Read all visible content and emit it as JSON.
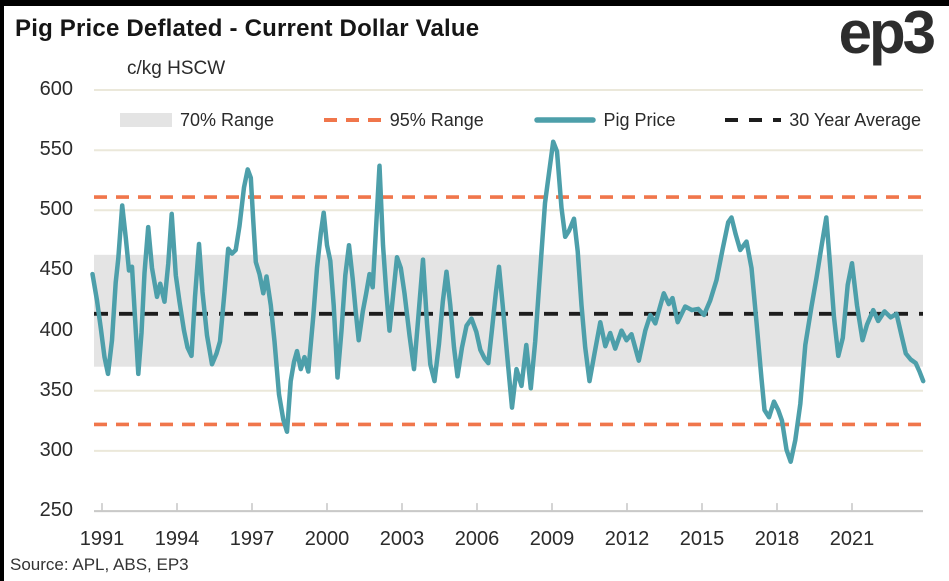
{
  "header": {
    "title": "Pig Price Deflated - Current Dollar Value",
    "logo_text": "ep3"
  },
  "footer": {
    "source": "Source: APL, ABS, EP3"
  },
  "chart_data": {
    "type": "line",
    "title": "Pig Price Deflated - Current Dollar Value",
    "y_unit_label": "c/kg HSCW",
    "ylim": [
      250,
      600
    ],
    "xlim": [
      1990.6,
      2023.9
    ],
    "grid": "horizontal-only",
    "y_ticks": [
      600,
      550,
      500,
      450,
      400,
      350,
      300,
      250
    ],
    "x_ticks": [
      1991,
      1994,
      1997,
      2000,
      2003,
      2006,
      2009,
      2012,
      2015,
      2018,
      2021
    ],
    "legend_position": "top",
    "legend": [
      {
        "label": "70% Range",
        "type": "band",
        "color": "#e4e4e4"
      },
      {
        "label": "95% Range",
        "type": "dashed",
        "color": "#f0764b"
      },
      {
        "label": "Pig Price",
        "type": "line",
        "color": "#4d9faa"
      },
      {
        "label": "30 Year Average",
        "type": "dashed",
        "color": "#1d1d1d"
      }
    ],
    "colors": {
      "band": "#e4e4e4",
      "range95": "#f0764b",
      "series": "#4d9faa",
      "average": "#1d1d1d",
      "gridline": "#ebe8da",
      "axis": "#c9c9c9"
    },
    "range_70": [
      370,
      463
    ],
    "range_95": [
      322,
      511
    ],
    "average_30yr": 414,
    "series": [
      {
        "name": "Pig Price",
        "color": "#4d9faa",
        "points": [
          [
            1990.62,
            447
          ],
          [
            1990.8,
            425
          ],
          [
            1990.95,
            402
          ],
          [
            1991.1,
            378
          ],
          [
            1991.24,
            364
          ],
          [
            1991.4,
            392
          ],
          [
            1991.55,
            440
          ],
          [
            1991.65,
            460
          ],
          [
            1991.81,
            504
          ],
          [
            1991.95,
            477
          ],
          [
            1992.08,
            450
          ],
          [
            1992.2,
            453
          ],
          [
            1992.33,
            408
          ],
          [
            1992.45,
            364
          ],
          [
            1992.58,
            398
          ],
          [
            1992.7,
            448
          ],
          [
            1992.85,
            486
          ],
          [
            1993.0,
            452
          ],
          [
            1993.2,
            428
          ],
          [
            1993.33,
            439
          ],
          [
            1993.5,
            424
          ],
          [
            1993.65,
            456
          ],
          [
            1993.79,
            497
          ],
          [
            1993.95,
            446
          ],
          [
            1994.1,
            424
          ],
          [
            1994.28,
            400
          ],
          [
            1994.42,
            386
          ],
          [
            1994.58,
            379
          ],
          [
            1994.72,
            428
          ],
          [
            1994.88,
            472
          ],
          [
            1995.02,
            432
          ],
          [
            1995.2,
            396
          ],
          [
            1995.4,
            372
          ],
          [
            1995.58,
            381
          ],
          [
            1995.72,
            391
          ],
          [
            1995.9,
            432
          ],
          [
            1996.05,
            468
          ],
          [
            1996.2,
            464
          ],
          [
            1996.35,
            467
          ],
          [
            1996.5,
            487
          ],
          [
            1996.68,
            519
          ],
          [
            1996.83,
            534
          ],
          [
            1996.95,
            527
          ],
          [
            1997.05,
            492
          ],
          [
            1997.15,
            457
          ],
          [
            1997.3,
            447
          ],
          [
            1997.45,
            431
          ],
          [
            1997.58,
            445
          ],
          [
            1997.75,
            421
          ],
          [
            1997.9,
            391
          ],
          [
            1998.08,
            347
          ],
          [
            1998.25,
            326
          ],
          [
            1998.4,
            316
          ],
          [
            1998.55,
            358
          ],
          [
            1998.68,
            374
          ],
          [
            1998.8,
            383
          ],
          [
            1998.95,
            368
          ],
          [
            1999.1,
            378
          ],
          [
            1999.25,
            366
          ],
          [
            1999.45,
            412
          ],
          [
            1999.6,
            452
          ],
          [
            1999.75,
            481
          ],
          [
            1999.87,
            498
          ],
          [
            2000.0,
            471
          ],
          [
            2000.13,
            458
          ],
          [
            2000.27,
            421
          ],
          [
            2000.42,
            361
          ],
          [
            2000.58,
            400
          ],
          [
            2000.73,
            446
          ],
          [
            2000.88,
            471
          ],
          [
            2001.03,
            443
          ],
          [
            2001.15,
            415
          ],
          [
            2001.27,
            392
          ],
          [
            2001.43,
            416
          ],
          [
            2001.57,
            431
          ],
          [
            2001.7,
            447
          ],
          [
            2001.83,
            436
          ],
          [
            2001.97,
            489
          ],
          [
            2002.1,
            537
          ],
          [
            2002.24,
            471
          ],
          [
            2002.37,
            433
          ],
          [
            2002.5,
            400
          ],
          [
            2002.65,
            431
          ],
          [
            2002.8,
            461
          ],
          [
            2002.95,
            452
          ],
          [
            2003.1,
            431
          ],
          [
            2003.3,
            396
          ],
          [
            2003.48,
            368
          ],
          [
            2003.65,
            411
          ],
          [
            2003.84,
            459
          ],
          [
            2004.0,
            406
          ],
          [
            2004.13,
            372
          ],
          [
            2004.3,
            358
          ],
          [
            2004.48,
            389
          ],
          [
            2004.63,
            424
          ],
          [
            2004.78,
            449
          ],
          [
            2004.93,
            421
          ],
          [
            2005.08,
            386
          ],
          [
            2005.22,
            362
          ],
          [
            2005.4,
            386
          ],
          [
            2005.58,
            404
          ],
          [
            2005.78,
            410
          ],
          [
            2005.97,
            399
          ],
          [
            2006.13,
            384
          ],
          [
            2006.3,
            377
          ],
          [
            2006.45,
            373
          ],
          [
            2006.6,
            401
          ],
          [
            2006.75,
            431
          ],
          [
            2006.88,
            453
          ],
          [
            2007.03,
            421
          ],
          [
            2007.2,
            381
          ],
          [
            2007.4,
            336
          ],
          [
            2007.58,
            368
          ],
          [
            2007.78,
            354
          ],
          [
            2007.97,
            388
          ],
          [
            2008.15,
            352
          ],
          [
            2008.33,
            391
          ],
          [
            2008.53,
            450
          ],
          [
            2008.72,
            506
          ],
          [
            2008.88,
            531
          ],
          [
            2009.05,
            557
          ],
          [
            2009.2,
            549
          ],
          [
            2009.38,
            502
          ],
          [
            2009.53,
            478
          ],
          [
            2009.68,
            483
          ],
          [
            2009.88,
            493
          ],
          [
            2010.03,
            466
          ],
          [
            2010.18,
            421
          ],
          [
            2010.33,
            386
          ],
          [
            2010.5,
            358
          ],
          [
            2010.7,
            381
          ],
          [
            2010.93,
            407
          ],
          [
            2011.13,
            387
          ],
          [
            2011.33,
            398
          ],
          [
            2011.53,
            385
          ],
          [
            2011.78,
            400
          ],
          [
            2011.98,
            392
          ],
          [
            2012.18,
            397
          ],
          [
            2012.47,
            375
          ],
          [
            2012.73,
            400
          ],
          [
            2012.93,
            413
          ],
          [
            2013.13,
            406
          ],
          [
            2013.47,
            431
          ],
          [
            2013.67,
            422
          ],
          [
            2013.82,
            427
          ],
          [
            2014.03,
            407
          ],
          [
            2014.33,
            420
          ],
          [
            2014.6,
            417
          ],
          [
            2014.85,
            418
          ],
          [
            2015.08,
            413
          ],
          [
            2015.33,
            425
          ],
          [
            2015.58,
            442
          ],
          [
            2015.83,
            468
          ],
          [
            2016.05,
            490
          ],
          [
            2016.18,
            494
          ],
          [
            2016.35,
            480
          ],
          [
            2016.53,
            467
          ],
          [
            2016.78,
            474
          ],
          [
            2016.98,
            452
          ],
          [
            2017.18,
            407
          ],
          [
            2017.38,
            360
          ],
          [
            2017.5,
            334
          ],
          [
            2017.68,
            328
          ],
          [
            2017.88,
            341
          ],
          [
            2018.05,
            334
          ],
          [
            2018.2,
            325
          ],
          [
            2018.38,
            301
          ],
          [
            2018.55,
            291
          ],
          [
            2018.73,
            309
          ],
          [
            2018.93,
            339
          ],
          [
            2019.13,
            388
          ],
          [
            2019.38,
            420
          ],
          [
            2019.58,
            444
          ],
          [
            2019.78,
            470
          ],
          [
            2019.97,
            494
          ],
          [
            2020.13,
            452
          ],
          [
            2020.28,
            411
          ],
          [
            2020.45,
            379
          ],
          [
            2020.63,
            394
          ],
          [
            2020.83,
            438
          ],
          [
            2021.0,
            456
          ],
          [
            2021.2,
            421
          ],
          [
            2021.42,
            392
          ],
          [
            2021.6,
            405
          ],
          [
            2021.85,
            417
          ],
          [
            2022.05,
            408
          ],
          [
            2022.3,
            416
          ],
          [
            2022.55,
            411
          ],
          [
            2022.78,
            414
          ],
          [
            2022.98,
            396
          ],
          [
            2023.15,
            381
          ],
          [
            2023.35,
            376
          ],
          [
            2023.55,
            373
          ],
          [
            2023.7,
            366
          ],
          [
            2023.85,
            358
          ]
        ]
      }
    ]
  }
}
